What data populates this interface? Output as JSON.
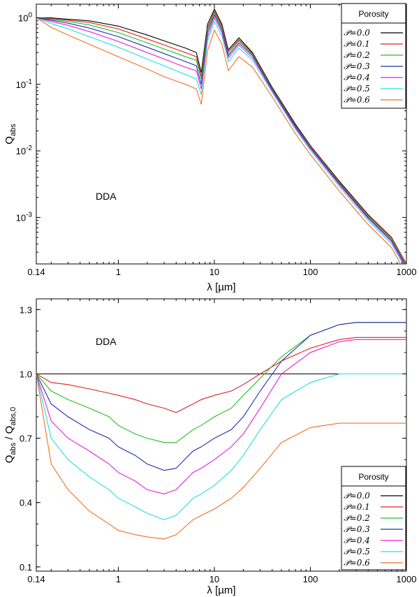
{
  "chart_data": [
    {
      "type": "line",
      "xlabel": "λ [µm]",
      "ylabel_main": "Q",
      "ylabel_sub": "abs",
      "annotation": "DDA",
      "xscale": "log",
      "yscale": "log",
      "xlim": [
        0.14,
        1000
      ],
      "ylim": [
        0.0002,
        1.6
      ],
      "xticks": [
        {
          "v": 0.14,
          "label": "0.14"
        },
        {
          "v": 1,
          "label": "1"
        },
        {
          "v": 10,
          "label": "10"
        },
        {
          "v": 100,
          "label": "100"
        },
        {
          "v": 1000,
          "label": "1000"
        }
      ],
      "yticks": [
        {
          "v": 1,
          "base": "10",
          "exp": "0"
        },
        {
          "v": 0.1,
          "base": "10",
          "exp": "-1"
        },
        {
          "v": 0.01,
          "base": "10",
          "exp": "-2"
        },
        {
          "v": 0.001,
          "base": "10",
          "exp": "-3"
        }
      ],
      "legend": {
        "title": "Porosity",
        "placement": "top-right"
      },
      "x": [
        0.14,
        0.2,
        0.3,
        0.5,
        1,
        2,
        3,
        5,
        6.5,
        7.3,
        8.5,
        10,
        12,
        14,
        18,
        25,
        40,
        70,
        100,
        200,
        400,
        700,
        1000
      ],
      "series": [
        {
          "name": "𝒫=0.0",
          "color": "#000000",
          "values": [
            1.0,
            1.0,
            0.95,
            0.9,
            0.75,
            0.55,
            0.45,
            0.35,
            0.3,
            0.15,
            0.8,
            1.35,
            0.8,
            0.33,
            0.5,
            0.3,
            0.09,
            0.025,
            0.012,
            0.0035,
            0.0011,
            0.0005,
            0.0002
          ]
        },
        {
          "name": "𝒫=0.1",
          "color": "#e02020",
          "values": [
            1.0,
            0.97,
            0.92,
            0.85,
            0.68,
            0.48,
            0.39,
            0.3,
            0.26,
            0.13,
            0.72,
            1.25,
            0.75,
            0.31,
            0.47,
            0.29,
            0.087,
            0.024,
            0.0118,
            0.0034,
            0.00108,
            0.00049,
            0.0002
          ]
        },
        {
          "name": "𝒫=0.2",
          "color": "#20c020",
          "values": [
            1.0,
            0.95,
            0.88,
            0.78,
            0.6,
            0.42,
            0.34,
            0.26,
            0.23,
            0.12,
            0.66,
            1.18,
            0.7,
            0.29,
            0.45,
            0.28,
            0.085,
            0.0235,
            0.0115,
            0.0033,
            0.00104,
            0.00047,
            0.00019
          ]
        },
        {
          "name": "𝒫=0.3",
          "color": "#2030b0",
          "values": [
            1.0,
            0.92,
            0.83,
            0.7,
            0.52,
            0.36,
            0.29,
            0.22,
            0.19,
            0.1,
            0.6,
            1.1,
            0.66,
            0.27,
            0.42,
            0.27,
            0.083,
            0.023,
            0.0112,
            0.0032,
            0.001,
            0.00045,
            0.00018
          ]
        },
        {
          "name": "𝒫=0.4",
          "color": "#e020e0",
          "values": [
            1.0,
            0.88,
            0.77,
            0.62,
            0.44,
            0.3,
            0.24,
            0.18,
            0.16,
            0.085,
            0.52,
            1.0,
            0.6,
            0.25,
            0.39,
            0.25,
            0.08,
            0.022,
            0.0108,
            0.0031,
            0.00096,
            0.00043,
            0.00017
          ]
        },
        {
          "name": "𝒫=0.5",
          "color": "#20e0e0",
          "values": [
            1.0,
            0.82,
            0.68,
            0.52,
            0.36,
            0.24,
            0.19,
            0.14,
            0.12,
            0.07,
            0.45,
            0.88,
            0.53,
            0.22,
            0.35,
            0.23,
            0.076,
            0.021,
            0.0102,
            0.0029,
            0.0009,
            0.0004,
            0.00016
          ]
        },
        {
          "name": "𝒫=0.6",
          "color": "#f07020",
          "values": [
            1.0,
            0.72,
            0.55,
            0.4,
            0.26,
            0.17,
            0.13,
            0.1,
            0.085,
            0.05,
            0.32,
            0.65,
            0.4,
            0.16,
            0.26,
            0.18,
            0.065,
            0.018,
            0.0088,
            0.0025,
            0.00078,
            0.00035,
            0.00014
          ]
        }
      ]
    },
    {
      "type": "line",
      "xlabel": "λ [µm]",
      "ylabel_main": "Q",
      "ylabel_sub": "abs",
      "ylabel_main2": " / Q",
      "ylabel_sub2": "abs,0",
      "annotation": "DDA",
      "xscale": "log",
      "yscale": "linear",
      "xlim": [
        0.14,
        1000
      ],
      "ylim": [
        0.08,
        1.35
      ],
      "xticks": [
        {
          "v": 0.14,
          "label": "0.14"
        },
        {
          "v": 1,
          "label": "1"
        },
        {
          "v": 10,
          "label": "10"
        },
        {
          "v": 100,
          "label": "100"
        },
        {
          "v": 1000,
          "label": "1000"
        }
      ],
      "yticks": [
        {
          "v": 1.3,
          "label": "1.3"
        },
        {
          "v": 1.0,
          "label": "1.0"
        },
        {
          "v": 0.7,
          "label": "0.7"
        },
        {
          "v": 0.4,
          "label": "0.4"
        },
        {
          "v": 0.1,
          "label": "0.1"
        }
      ],
      "legend": {
        "title": "Porosity",
        "placement": "bottom-right"
      },
      "x": [
        0.12,
        0.14,
        0.2,
        0.3,
        0.5,
        0.8,
        1,
        1.5,
        2,
        3,
        4,
        6,
        7.3,
        10,
        15,
        20,
        30,
        50,
        100,
        200,
        300,
        500,
        1000
      ],
      "series": [
        {
          "name": "𝒫=0.0",
          "color": "#000000",
          "values": [
            1.0,
            1.0,
            1.0,
            1.0,
            1.0,
            1.0,
            1.0,
            1.0,
            1.0,
            1.0,
            1.0,
            1.0,
            1.0,
            1.0,
            1.0,
            1.0,
            1.0,
            1.0,
            1.0,
            1.0,
            1.0,
            1.0,
            1.0
          ]
        },
        {
          "name": "𝒫=0.1",
          "color": "#e02020",
          "values": [
            1.08,
            1.0,
            0.96,
            0.95,
            0.93,
            0.91,
            0.9,
            0.88,
            0.86,
            0.84,
            0.82,
            0.86,
            0.88,
            0.9,
            0.92,
            0.95,
            1.0,
            1.06,
            1.12,
            1.16,
            1.17,
            1.17,
            1.17
          ]
        },
        {
          "name": "𝒫=0.2",
          "color": "#20c020",
          "values": [
            1.1,
            1.0,
            0.92,
            0.88,
            0.84,
            0.8,
            0.76,
            0.72,
            0.7,
            0.68,
            0.68,
            0.74,
            0.76,
            0.8,
            0.84,
            0.9,
            0.98,
            1.08,
            1.18,
            1.23,
            1.24,
            1.24,
            1.24
          ]
        },
        {
          "name": "𝒫=0.3",
          "color": "#2030b0",
          "values": [
            1.11,
            1.0,
            0.86,
            0.8,
            0.74,
            0.7,
            0.66,
            0.62,
            0.58,
            0.55,
            0.56,
            0.64,
            0.66,
            0.7,
            0.74,
            0.8,
            0.92,
            1.06,
            1.18,
            1.23,
            1.24,
            1.24,
            1.24
          ]
        },
        {
          "name": "𝒫=0.4",
          "color": "#e020e0",
          "values": [
            1.08,
            1.0,
            0.78,
            0.7,
            0.64,
            0.58,
            0.54,
            0.5,
            0.46,
            0.44,
            0.46,
            0.54,
            0.56,
            0.6,
            0.66,
            0.72,
            0.84,
            1.0,
            1.1,
            1.15,
            1.16,
            1.16,
            1.16
          ]
        },
        {
          "name": "𝒫=0.5",
          "color": "#20e0e0",
          "values": [
            1.06,
            1.0,
            0.7,
            0.6,
            0.52,
            0.46,
            0.42,
            0.38,
            0.35,
            0.32,
            0.34,
            0.42,
            0.44,
            0.48,
            0.55,
            0.62,
            0.74,
            0.88,
            0.96,
            1.0,
            1.0,
            1.0,
            1.0
          ]
        },
        {
          "name": "𝒫=0.6",
          "color": "#f07020",
          "values": [
            1.03,
            1.0,
            0.58,
            0.46,
            0.36,
            0.3,
            0.27,
            0.25,
            0.24,
            0.23,
            0.25,
            0.32,
            0.34,
            0.37,
            0.42,
            0.47,
            0.56,
            0.68,
            0.75,
            0.77,
            0.77,
            0.77,
            0.77
          ]
        }
      ]
    }
  ]
}
